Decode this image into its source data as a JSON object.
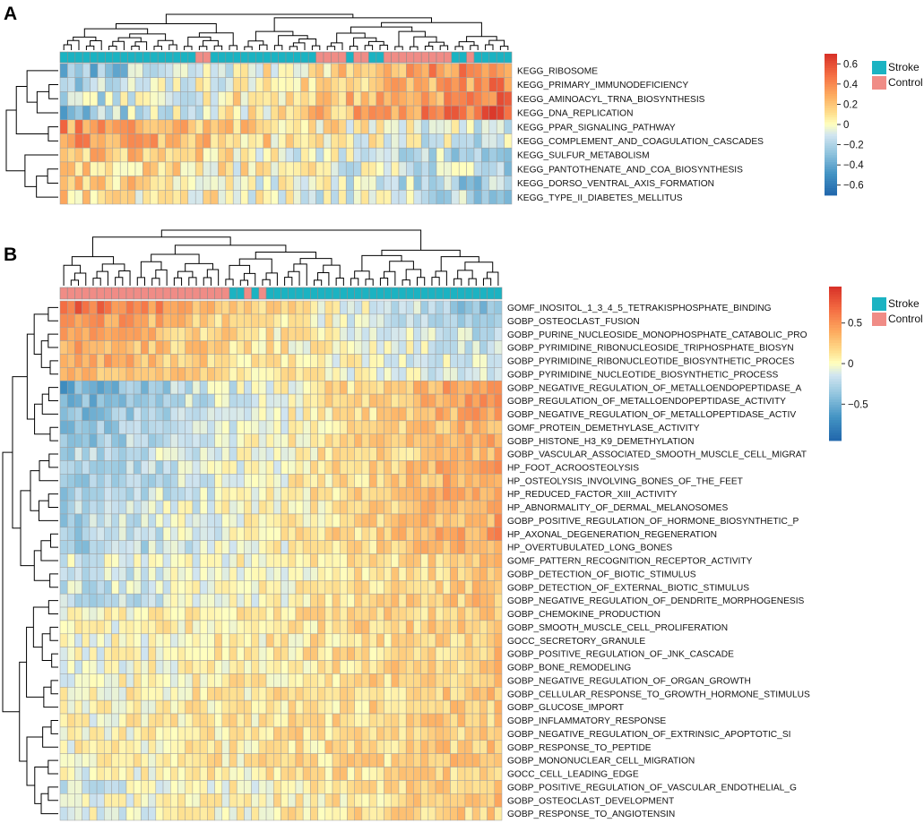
{
  "figure": {
    "panels": [
      {
        "label": "A",
        "colors": {
          "Stroke": "#1BB3C2",
          "Control": "#F08C86"
        }
      },
      {
        "label": "B",
        "colors": {
          "Stroke": "#1BB3C2",
          "Control": "#F08C86"
        }
      }
    ]
  },
  "chart_data": [
    {
      "type": "heatmap",
      "panel": "A",
      "n_columns": 60,
      "rows": [
        "KEGG_RIBOSOME",
        "KEGG_PRIMARY_IMMUNODEFICIENCY",
        "KEGG_AMINOACYL_TRNA_BIOSYNTHESIS",
        "KEGG_DNA_REPLICATION",
        "KEGG_PPAR_SIGNALING_PATHWAY",
        "KEGG_COMPLEMENT_AND_COAGULATION_CASCADES",
        "KEGG_SULFUR_METABOLISM",
        "KEGG_PANTOTHENATE_AND_COA_BIOSYNTHESIS",
        "KEGG_DORSO_VENTRAL_AXIS_FORMATION",
        "KEGG_TYPE_II_DIABETES_MELLITUS"
      ],
      "column_groups": "SSSSSSSSSSSSSSSSSSCCSSSSSSSSSSSSSSCCCCSCCSSCCCCCCCCCSSCSSSSS",
      "legend": {
        "title": "",
        "entries": [
          "Stroke",
          "Control"
        ]
      },
      "colorbar": {
        "min": -0.7,
        "max": 0.7,
        "ticks": [
          0.6,
          0.4,
          0.2,
          0,
          -0.2,
          -0.4,
          -0.6
        ],
        "tick_labels": [
          "0.6",
          "0.4",
          "0.2",
          "0",
          "−0.2",
          "−0.4",
          "−0.6"
        ]
      },
      "row_trend": [
        {
          "start": -0.35,
          "end": 0.45
        },
        {
          "start": -0.25,
          "end": 0.4
        },
        {
          "start": -0.2,
          "end": 0.45
        },
        {
          "start": -0.3,
          "end": 0.55
        },
        {
          "start": 0.35,
          "end": -0.1
        },
        {
          "start": 0.35,
          "end": -0.15
        },
        {
          "start": 0.25,
          "end": -0.25
        },
        {
          "start": 0.2,
          "end": -0.2
        },
        {
          "start": 0.2,
          "end": -0.25
        },
        {
          "start": 0.15,
          "end": -0.2
        }
      ],
      "noise": 0.18,
      "seed": 7
    },
    {
      "type": "heatmap",
      "panel": "B",
      "n_columns": 60,
      "rows": [
        "GOMF_INOSITOL_1_3_4_5_TETRAKISPHOSPHATE_BINDING",
        "GOBP_OSTEOCLAST_FUSION",
        "GOBP_PURINE_NUCLEOSIDE_MONOPHOSPHATE_CATABOLIC_PRO",
        "GOBP_PYRIMIDINE_RIBONUCLEOSIDE_TRIPHOSPHATE_BIOSYN",
        "GOBP_PYRIMIDINE_RIBONUCLEOTIDE_BIOSYNTHETIC_PROCES",
        "GOBP_PYRIMIDINE_NUCLEOTIDE_BIOSYNTHETIC_PROCESS",
        "GOBP_NEGATIVE_REGULATION_OF_METALLOENDOPEPTIDASE_A",
        "GOBP_REGULATION_OF_METALLOENDOPEPTIDASE_ACTIVITY",
        "GOBP_NEGATIVE_REGULATION_OF_METALLOPEPTIDASE_ACTIV",
        "GOMF_PROTEIN_DEMETHYLASE_ACTIVITY",
        "GOBP_HISTONE_H3_K9_DEMETHYLATION",
        "GOBP_VASCULAR_ASSOCIATED_SMOOTH_MUSCLE_CELL_MIGRAT",
        "HP_FOOT_ACROOSTEOLYSIS",
        "HP_OSTEOLYSIS_INVOLVING_BONES_OF_THE_FEET",
        "HP_REDUCED_FACTOR_XIII_ACTIVITY",
        "HP_ABNORMALITY_OF_DERMAL_MELANOSOMES",
        "GOBP_POSITIVE_REGULATION_OF_HORMONE_BIOSYNTHETIC_P",
        "HP_AXONAL_DEGENERATION_REGENERATION",
        "HP_OVERTUBULATED_LONG_BONES",
        "GOMF_PATTERN_RECOGNITION_RECEPTOR_ACTIVITY",
        "GOBP_DETECTION_OF_BIOTIC_STIMULUS",
        "GOBP_DETECTION_OF_EXTERNAL_BIOTIC_STIMULUS",
        "GOBP_NEGATIVE_REGULATION_OF_DENDRITE_MORPHOGENESIS",
        "GOBP_CHEMOKINE_PRODUCTION",
        "GOBP_SMOOTH_MUSCLE_CELL_PROLIFERATION",
        "GOCC_SECRETORY_GRANULE",
        "GOBP_POSITIVE_REGULATION_OF_JNK_CASCADE",
        "GOBP_BONE_REMODELING",
        "GOBP_NEGATIVE_REGULATION_OF_ORGAN_GROWTH",
        "GOBP_CELLULAR_RESPONSE_TO_GROWTH_HORMONE_STIMULUS",
        "GOBP_GLUCOSE_IMPORT",
        "GOBP_INFLAMMATORY_RESPONSE",
        "GOBP_NEGATIVE_REGULATION_OF_EXTRINSIC_APOPTOTIC_SI",
        "GOBP_RESPONSE_TO_PEPTIDE",
        "GOBP_MONONUCLEAR_CELL_MIGRATION",
        "GOCC_CELL_LEADING_EDGE",
        "GOBP_POSITIVE_REGULATION_OF_VASCULAR_ENDOTHELIAL_G",
        "GOBP_OSTEOCLAST_DEVELOPMENT",
        "GOBP_RESPONSE_TO_ANGIOTENSIN"
      ],
      "column_groups": "CCCCCCCCCCCCCCCCCCCCCCCSSCSCSSSSSSSSSSSSSSSSSSSSSSSSSSSSSSSS",
      "legend": {
        "title": "",
        "entries": [
          "Stroke",
          "Control"
        ]
      },
      "colorbar": {
        "min": -0.95,
        "max": 0.95,
        "ticks": [
          0.5,
          0,
          -0.5
        ],
        "tick_labels": [
          "0.5",
          "0",
          "−0.5"
        ]
      },
      "row_trend": [
        {
          "start": 0.75,
          "end": -0.45
        },
        {
          "start": 0.55,
          "end": -0.35
        },
        {
          "start": 0.45,
          "end": -0.25
        },
        {
          "start": 0.4,
          "end": -0.2
        },
        {
          "start": 0.4,
          "end": -0.2
        },
        {
          "start": 0.4,
          "end": -0.2
        },
        {
          "start": -0.55,
          "end": 0.55
        },
        {
          "start": -0.5,
          "end": 0.5
        },
        {
          "start": -0.45,
          "end": 0.45
        },
        {
          "start": -0.4,
          "end": 0.4
        },
        {
          "start": -0.4,
          "end": 0.45
        },
        {
          "start": -0.3,
          "end": 0.35
        },
        {
          "start": -0.4,
          "end": 0.45
        },
        {
          "start": -0.4,
          "end": 0.45
        },
        {
          "start": -0.35,
          "end": 0.45
        },
        {
          "start": -0.3,
          "end": 0.4
        },
        {
          "start": -0.3,
          "end": 0.4
        },
        {
          "start": -0.35,
          "end": 0.45
        },
        {
          "start": -0.35,
          "end": 0.4
        },
        {
          "start": -0.15,
          "end": 0.25
        },
        {
          "start": -0.2,
          "end": 0.25
        },
        {
          "start": -0.2,
          "end": 0.25
        },
        {
          "start": -0.25,
          "end": 0.3
        },
        {
          "start": -0.05,
          "end": 0.25
        },
        {
          "start": -0.05,
          "end": 0.25
        },
        {
          "start": -0.05,
          "end": 0.25
        },
        {
          "start": -0.05,
          "end": 0.25
        },
        {
          "start": -0.05,
          "end": 0.25
        },
        {
          "start": 0.0,
          "end": 0.25
        },
        {
          "start": 0.0,
          "end": 0.25
        },
        {
          "start": 0.0,
          "end": 0.25
        },
        {
          "start": 0.0,
          "end": 0.25
        },
        {
          "start": 0.0,
          "end": 0.25
        },
        {
          "start": 0.0,
          "end": 0.25
        },
        {
          "start": 0.0,
          "end": 0.25
        },
        {
          "start": -0.05,
          "end": 0.25
        },
        {
          "start": -0.15,
          "end": 0.25
        },
        {
          "start": -0.1,
          "end": 0.25
        },
        {
          "start": -0.1,
          "end": 0.25
        }
      ],
      "noise": 0.17,
      "seed": 19
    }
  ]
}
